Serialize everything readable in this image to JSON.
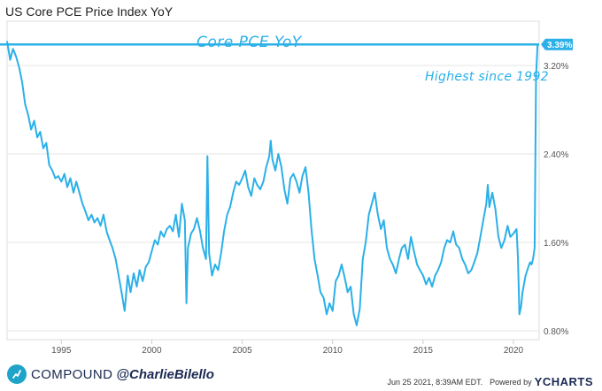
{
  "header": {
    "title": "US Core PCE Price Index YoY"
  },
  "footer": {
    "brand": "COMPOUND",
    "handle": "@CharlieBilello",
    "timestamp": "Jun 25 2021, 8:39AM EDT.",
    "powered_by": "Powered by",
    "source_logo": "YCHARTS"
  },
  "colors": {
    "series": "#2bb0e8",
    "annotation": "#2bb0e8",
    "grid": "#e6e6e6",
    "axis_text": "#555555"
  },
  "chart_data": {
    "type": "line",
    "title": "US Core PCE Price Index YoY",
    "xlabel": "",
    "ylabel": "",
    "x_range": [
      1992.0,
      2021.42
    ],
    "ylim": [
      0.72,
      3.6
    ],
    "y_ticks": [
      0.8,
      1.6,
      2.4,
      3.2
    ],
    "y_tick_labels": [
      "0.80%",
      "1.60%",
      "2.40%",
      "3.20%"
    ],
    "x_ticks": [
      1995,
      2000,
      2005,
      2010,
      2015,
      2020
    ],
    "x_tick_labels": [
      "1995",
      "2000",
      "2005",
      "2010",
      "2015",
      "2020"
    ],
    "grid": true,
    "annotations": [
      {
        "text": "Core PCE YoY",
        "x": 2005.4,
        "y": 3.52
      },
      {
        "text": "Highest since 1992",
        "x": 2017.4,
        "y": 3.45
      }
    ],
    "reference_line": {
      "y": 3.39,
      "label": "3.39%"
    },
    "last_value_label": "3.39%",
    "series": [
      {
        "name": "US Core PCE Price Index YoY",
        "points": [
          [
            1992.0,
            3.42
          ],
          [
            1992.17,
            3.25
          ],
          [
            1992.33,
            3.35
          ],
          [
            1992.5,
            3.28
          ],
          [
            1992.67,
            3.18
          ],
          [
            1992.83,
            3.05
          ],
          [
            1993.0,
            2.85
          ],
          [
            1993.17,
            2.75
          ],
          [
            1993.33,
            2.62
          ],
          [
            1993.5,
            2.7
          ],
          [
            1993.67,
            2.55
          ],
          [
            1993.83,
            2.6
          ],
          [
            1994.0,
            2.45
          ],
          [
            1994.17,
            2.5
          ],
          [
            1994.33,
            2.3
          ],
          [
            1994.5,
            2.25
          ],
          [
            1994.67,
            2.18
          ],
          [
            1994.83,
            2.2
          ],
          [
            1995.0,
            2.15
          ],
          [
            1995.17,
            2.22
          ],
          [
            1995.33,
            2.1
          ],
          [
            1995.5,
            2.18
          ],
          [
            1995.67,
            2.05
          ],
          [
            1995.83,
            2.15
          ],
          [
            1996.0,
            2.05
          ],
          [
            1996.17,
            1.95
          ],
          [
            1996.33,
            1.88
          ],
          [
            1996.5,
            1.8
          ],
          [
            1996.67,
            1.85
          ],
          [
            1996.83,
            1.78
          ],
          [
            1997.0,
            1.82
          ],
          [
            1997.17,
            1.75
          ],
          [
            1997.33,
            1.85
          ],
          [
            1997.5,
            1.7
          ],
          [
            1997.67,
            1.62
          ],
          [
            1997.83,
            1.55
          ],
          [
            1998.0,
            1.45
          ],
          [
            1998.17,
            1.3
          ],
          [
            1998.33,
            1.15
          ],
          [
            1998.5,
            0.98
          ],
          [
            1998.67,
            1.3
          ],
          [
            1998.83,
            1.15
          ],
          [
            1999.0,
            1.32
          ],
          [
            1999.17,
            1.2
          ],
          [
            1999.33,
            1.35
          ],
          [
            1999.5,
            1.25
          ],
          [
            1999.67,
            1.38
          ],
          [
            1999.83,
            1.42
          ],
          [
            2000.0,
            1.52
          ],
          [
            2000.17,
            1.62
          ],
          [
            2000.33,
            1.58
          ],
          [
            2000.5,
            1.7
          ],
          [
            2000.67,
            1.65
          ],
          [
            2000.83,
            1.72
          ],
          [
            2001.0,
            1.75
          ],
          [
            2001.17,
            1.7
          ],
          [
            2001.33,
            1.85
          ],
          [
            2001.5,
            1.65
          ],
          [
            2001.67,
            1.95
          ],
          [
            2001.83,
            1.8
          ],
          [
            2001.92,
            1.05
          ],
          [
            2002.0,
            1.55
          ],
          [
            2002.17,
            1.68
          ],
          [
            2002.33,
            1.72
          ],
          [
            2002.5,
            1.82
          ],
          [
            2002.67,
            1.7
          ],
          [
            2002.83,
            1.55
          ],
          [
            2003.0,
            1.45
          ],
          [
            2003.08,
            2.38
          ],
          [
            2003.17,
            1.5
          ],
          [
            2003.33,
            1.3
          ],
          [
            2003.5,
            1.4
          ],
          [
            2003.67,
            1.35
          ],
          [
            2003.83,
            1.5
          ],
          [
            2004.0,
            1.7
          ],
          [
            2004.17,
            1.85
          ],
          [
            2004.33,
            1.92
          ],
          [
            2004.5,
            2.05
          ],
          [
            2004.67,
            2.15
          ],
          [
            2004.83,
            2.12
          ],
          [
            2005.0,
            2.18
          ],
          [
            2005.17,
            2.25
          ],
          [
            2005.33,
            2.1
          ],
          [
            2005.5,
            2.02
          ],
          [
            2005.67,
            2.18
          ],
          [
            2005.83,
            2.12
          ],
          [
            2006.0,
            2.08
          ],
          [
            2006.17,
            2.15
          ],
          [
            2006.33,
            2.28
          ],
          [
            2006.5,
            2.38
          ],
          [
            2006.58,
            2.52
          ],
          [
            2006.67,
            2.35
          ],
          [
            2006.83,
            2.25
          ],
          [
            2007.0,
            2.4
          ],
          [
            2007.17,
            2.28
          ],
          [
            2007.33,
            2.08
          ],
          [
            2007.5,
            1.95
          ],
          [
            2007.67,
            2.18
          ],
          [
            2007.83,
            2.22
          ],
          [
            2008.0,
            2.15
          ],
          [
            2008.17,
            2.05
          ],
          [
            2008.33,
            2.2
          ],
          [
            2008.5,
            2.28
          ],
          [
            2008.67,
            2.05
          ],
          [
            2008.83,
            1.72
          ],
          [
            2009.0,
            1.45
          ],
          [
            2009.17,
            1.3
          ],
          [
            2009.33,
            1.15
          ],
          [
            2009.5,
            1.1
          ],
          [
            2009.67,
            0.95
          ],
          [
            2009.83,
            1.05
          ],
          [
            2010.0,
            0.98
          ],
          [
            2010.17,
            1.25
          ],
          [
            2010.33,
            1.3
          ],
          [
            2010.5,
            1.4
          ],
          [
            2010.67,
            1.28
          ],
          [
            2010.83,
            1.15
          ],
          [
            2011.0,
            1.2
          ],
          [
            2011.17,
            0.95
          ],
          [
            2011.33,
            0.85
          ],
          [
            2011.5,
            1.0
          ],
          [
            2011.67,
            1.45
          ],
          [
            2011.83,
            1.6
          ],
          [
            2012.0,
            1.85
          ],
          [
            2012.17,
            1.95
          ],
          [
            2012.33,
            2.05
          ],
          [
            2012.5,
            1.85
          ],
          [
            2012.67,
            1.72
          ],
          [
            2012.83,
            1.8
          ],
          [
            2013.0,
            1.55
          ],
          [
            2013.17,
            1.45
          ],
          [
            2013.33,
            1.4
          ],
          [
            2013.5,
            1.32
          ],
          [
            2013.67,
            1.45
          ],
          [
            2013.83,
            1.55
          ],
          [
            2014.0,
            1.58
          ],
          [
            2014.17,
            1.45
          ],
          [
            2014.33,
            1.65
          ],
          [
            2014.5,
            1.52
          ],
          [
            2014.67,
            1.4
          ],
          [
            2014.83,
            1.35
          ],
          [
            2015.0,
            1.3
          ],
          [
            2015.17,
            1.22
          ],
          [
            2015.33,
            1.28
          ],
          [
            2015.5,
            1.2
          ],
          [
            2015.67,
            1.3
          ],
          [
            2015.83,
            1.35
          ],
          [
            2016.0,
            1.42
          ],
          [
            2016.17,
            1.55
          ],
          [
            2016.33,
            1.62
          ],
          [
            2016.5,
            1.6
          ],
          [
            2016.67,
            1.7
          ],
          [
            2016.83,
            1.58
          ],
          [
            2017.0,
            1.55
          ],
          [
            2017.17,
            1.45
          ],
          [
            2017.33,
            1.4
          ],
          [
            2017.5,
            1.32
          ],
          [
            2017.67,
            1.35
          ],
          [
            2017.83,
            1.42
          ],
          [
            2018.0,
            1.5
          ],
          [
            2018.17,
            1.65
          ],
          [
            2018.33,
            1.8
          ],
          [
            2018.5,
            1.95
          ],
          [
            2018.58,
            2.12
          ],
          [
            2018.67,
            1.92
          ],
          [
            2018.83,
            2.05
          ],
          [
            2019.0,
            1.9
          ],
          [
            2019.17,
            1.65
          ],
          [
            2019.33,
            1.55
          ],
          [
            2019.5,
            1.62
          ],
          [
            2019.67,
            1.75
          ],
          [
            2019.83,
            1.65
          ],
          [
            2020.0,
            1.68
          ],
          [
            2020.17,
            1.72
          ],
          [
            2020.25,
            1.45
          ],
          [
            2020.33,
            0.95
          ],
          [
            2020.42,
            1.02
          ],
          [
            2020.5,
            1.15
          ],
          [
            2020.67,
            1.3
          ],
          [
            2020.83,
            1.38
          ],
          [
            2020.92,
            1.42
          ],
          [
            2021.0,
            1.4
          ],
          [
            2021.08,
            1.45
          ],
          [
            2021.17,
            1.55
          ],
          [
            2021.25,
            3.1
          ],
          [
            2021.33,
            3.39
          ]
        ]
      }
    ]
  }
}
